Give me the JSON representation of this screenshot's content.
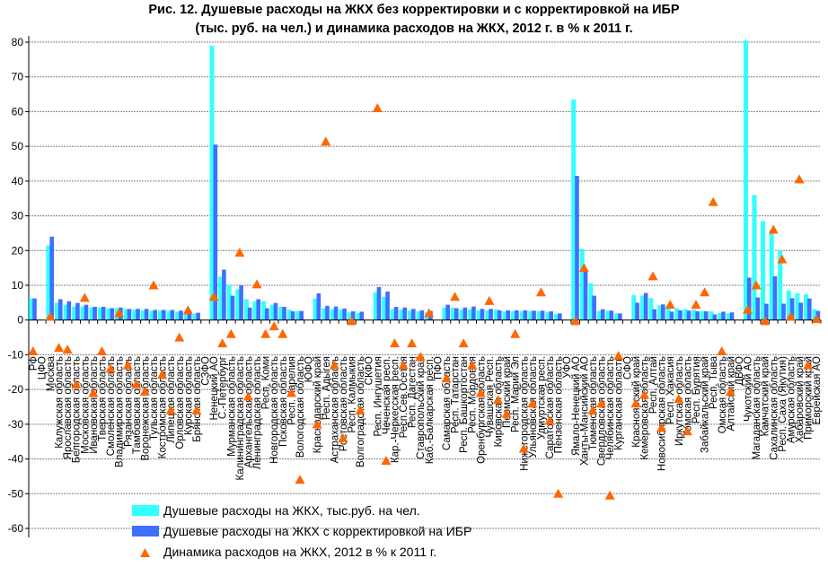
{
  "chart_data": {
    "type": "bar",
    "title": [
      "Рис. 12. Душевые расходы на ЖКХ без корректировки и с корректировкой на ИБР",
      "(тыс. руб. на чел.) и динамика расходов на ЖКХ, 2012 г. в % к 2011 г."
    ],
    "xlabel": "",
    "ylabel": "",
    "ylim": [
      -60,
      80
    ],
    "yticks": [
      80,
      70,
      60,
      50,
      40,
      30,
      20,
      10,
      0,
      -10,
      -20,
      -30,
      -40,
      -50,
      -60
    ],
    "grid": true,
    "legend_position": "bottom-left",
    "categories": [
      "РФ",
      "ЦФО",
      "Москва",
      "Калужская область",
      "Ярославская область",
      "Белгородская область",
      "Московская область",
      "Ивановская область",
      "Тверская область",
      "Смоленская область",
      "Владимирская область",
      "Рязанская область",
      "Тамбовская область",
      "Воронежская область",
      "Тульская область",
      "Костромская область",
      "Липецкая область",
      "Орловская область",
      "Курская область",
      "Брянская область",
      "СЗФО",
      "Ненецкий АО",
      "С.-Петербург",
      "Мурманская область",
      "Калининградская область",
      "Архангельская область",
      "Ленинградская область",
      "Респ. Коми",
      "Новгородская область",
      "Псковская область",
      "Респ. Карелия",
      "Вологодская область",
      "ЮФО",
      "Краснодарский край",
      "Респ. Адыгея",
      "Астраханская область",
      "Ростовская область",
      "Респ. Калмыкия",
      "Волгоградская область",
      "СКФО",
      "Респ. Ингушетия",
      "Чеченская респ.",
      "Кар.-Черкесская респ.",
      "Респ.Сев.Осетия",
      "Респ. Дагестан",
      "Ставропольский край",
      "Каб.-Балкарская респ.",
      "ПФО",
      "Самарская область",
      "Респ. Татарстан",
      "Респ. Башкортостан",
      "Респ. Мордовия",
      "Оренбургская область",
      "Чувашская Респ.",
      "Кировская область",
      "Пермский край",
      "Респ. Марий Эл",
      "Нижегородская область",
      "Ульяновская область",
      "Удмуртская респ.",
      "Саратовская область",
      "Пензенская область",
      "УФО",
      "Ямало-Ненецкий АО",
      "Ханты-Мансийский АО",
      "Тюменская область",
      "Свердловская область",
      "Челябинская область",
      "Курганская область",
      "СФО",
      "Красноярский край",
      "Кемеровская область",
      "Респ. Алтай",
      "Новосибирская область",
      "Респ. Хакасия",
      "Иркутская область",
      "Томская область",
      "Респ. Бурятия",
      "Забайкальский край",
      "Респ. Тыва",
      "Омская область",
      "Алтайский край",
      "ДВФО",
      "Чукотский АО",
      "Магаданская область",
      "Камчатский край",
      "Сахалинская область",
      "Респ. Саха (Якутия)",
      "Амурская область",
      "Хабаровский край",
      "Приморский край",
      "Еврейская АО"
    ],
    "series": [
      {
        "name": "Душевые расходы на ЖКХ, тыс.руб. на чел.",
        "type": "bar",
        "color": "#33FFFF",
        "values": [
          6.2,
          null,
          21.5,
          5.0,
          4.4,
          3.9,
          3.9,
          3.6,
          3.6,
          3.4,
          3.4,
          3.2,
          3.0,
          2.8,
          2.7,
          2.8,
          2.7,
          2.4,
          2.3,
          1.8,
          null,
          79.0,
          12.5,
          10.2,
          8.8,
          6.0,
          5.4,
          5.4,
          4.4,
          3.8,
          3.0,
          2.6,
          null,
          6.2,
          3.4,
          3.1,
          3.0,
          2.2,
          2.0,
          null,
          8.0,
          6.7,
          3.2,
          3.0,
          2.7,
          2.5,
          2.2,
          null,
          3.6,
          3.5,
          3.0,
          3.1,
          2.8,
          2.8,
          3.0,
          2.5,
          2.6,
          2.6,
          2.6,
          2.5,
          2.3,
          1.7,
          null,
          63.5,
          20.5,
          10.6,
          2.6,
          2.7,
          1.9,
          null,
          7.2,
          7.0,
          6.3,
          4.2,
          3.4,
          3.4,
          3.1,
          3.0,
          2.6,
          2.5,
          2.0,
          1.9,
          null,
          80.5,
          36.0,
          28.5,
          26.0,
          20.0,
          8.5,
          7.7,
          7.4,
          3.1
        ]
      },
      {
        "name": "Душевые расходы на ЖКХ с корректировкой на ИБР",
        "type": "bar",
        "color": "#3F6FFF",
        "values": [
          6.2,
          null,
          24.0,
          6.0,
          5.4,
          4.9,
          4.4,
          3.8,
          3.8,
          3.4,
          3.6,
          3.2,
          3.2,
          3.2,
          2.9,
          2.9,
          2.9,
          2.7,
          2.5,
          2.1,
          null,
          50.5,
          14.5,
          7.0,
          10.0,
          3.6,
          6.0,
          3.4,
          4.9,
          3.8,
          2.5,
          2.6,
          null,
          7.7,
          4.1,
          3.9,
          3.3,
          2.5,
          2.4,
          null,
          9.5,
          8.2,
          3.8,
          3.6,
          3.2,
          2.8,
          2.6,
          null,
          4.4,
          3.4,
          3.6,
          3.9,
          3.2,
          3.2,
          2.8,
          2.8,
          2.8,
          2.8,
          2.7,
          2.7,
          2.5,
          1.9,
          null,
          41.5,
          14.0,
          7.0,
          3.1,
          2.7,
          1.9,
          null,
          5.0,
          7.8,
          3.1,
          4.5,
          2.4,
          2.8,
          2.7,
          2.5,
          2.5,
          1.6,
          2.4,
          2.2,
          null,
          12.2,
          6.5,
          4.7,
          12.6,
          4.7,
          6.3,
          5.0,
          6.2,
          2.6
        ]
      },
      {
        "name": "Динамика расходов на ЖКХ, 2012 в % к 2011 г.",
        "type": "scatter",
        "marker": "triangle",
        "color": "#FF6600",
        "values": [
          -9.0,
          null,
          1.0,
          -8.0,
          -8.5,
          -18.5,
          6.4,
          -21.0,
          -9.0,
          -14.0,
          2.0,
          -13.0,
          -18.5,
          -20.6,
          10.0,
          -15.7,
          -26.0,
          -5.0,
          2.8,
          -26.0,
          null,
          6.7,
          -6.7,
          -4.0,
          19.4,
          -22.0,
          10.3,
          -4.0,
          -1.8,
          -4.0,
          -21.0,
          -46.0,
          null,
          -30.0,
          51.4,
          -13.0,
          -34.0,
          -0.3,
          -26.0,
          null,
          61.0,
          -40.5,
          -6.7,
          -13.0,
          -6.7,
          -10.6,
          2.0,
          null,
          -16.8,
          6.7,
          -6.7,
          -13.0,
          -21.0,
          5.5,
          -23.0,
          -27.0,
          -4.0,
          -37.0,
          -24.0,
          8.0,
          -29.0,
          -50.0,
          null,
          -0.3,
          15.0,
          -26.0,
          -24.0,
          -50.5,
          -10.3,
          null,
          -24.0,
          -21.5,
          12.6,
          -31.0,
          4.4,
          -22.7,
          -32.0,
          4.4,
          8.0,
          34.0,
          -9.0,
          -20.6,
          null,
          3.0,
          10.0,
          -0.3,
          26.0,
          17.5,
          1.0,
          40.5,
          -13.0,
          0.3
        ]
      }
    ]
  }
}
